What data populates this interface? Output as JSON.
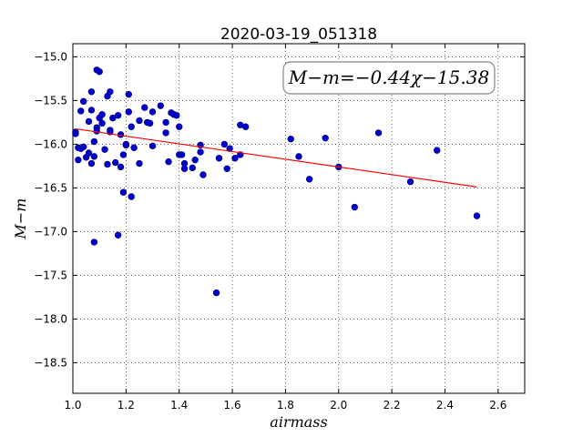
{
  "chart_data": {
    "type": "scatter",
    "title": "2020-03-19_051318",
    "xlabel": "airmass",
    "ylabel": "M−m",
    "xlim": [
      1.0,
      2.7
    ],
    "ylim": [
      -18.85,
      -14.85
    ],
    "y_inverted": true,
    "grid": true,
    "annotation": "M−m=−0.44χ−15.38",
    "x_ticks": [
      "1.0",
      "1.2",
      "1.4",
      "1.6",
      "1.8",
      "2.0",
      "2.2",
      "2.4",
      "2.6"
    ],
    "y_ticks": [
      "−15.0",
      "−15.5",
      "−16.0",
      "−16.5",
      "−17.0",
      "−17.5",
      "−18.0",
      "−18.5"
    ],
    "x_tick_values": [
      1.0,
      1.2,
      1.4,
      1.6,
      1.8,
      2.0,
      2.2,
      2.4,
      2.6
    ],
    "y_tick_values": [
      -15.0,
      -15.5,
      -16.0,
      -16.5,
      -17.0,
      -17.5,
      -18.0,
      -18.5
    ],
    "point_color": "#0000cc",
    "fit_color": "#ff0000",
    "fit": {
      "slope": -0.44,
      "intercept": -15.38,
      "x_range": [
        1.01,
        2.52
      ]
    },
    "points": [
      [
        1.01,
        -15.86
      ],
      [
        1.01,
        -15.88
      ],
      [
        1.02,
        -16.04
      ],
      [
        1.02,
        -16.18
      ],
      [
        1.03,
        -16.05
      ],
      [
        1.03,
        -15.62
      ],
      [
        1.04,
        -15.51
      ],
      [
        1.04,
        -16.03
      ],
      [
        1.05,
        -16.15
      ],
      [
        1.06,
        -16.1
      ],
      [
        1.06,
        -15.74
      ],
      [
        1.07,
        -15.4
      ],
      [
        1.07,
        -15.61
      ],
      [
        1.07,
        -16.22
      ],
      [
        1.08,
        -16.14
      ],
      [
        1.08,
        -15.97
      ],
      [
        1.08,
        -17.12
      ],
      [
        1.09,
        -15.15
      ],
      [
        1.09,
        -15.81
      ],
      [
        1.09,
        -15.85
      ],
      [
        1.1,
        -15.17
      ],
      [
        1.1,
        -15.7
      ],
      [
        1.11,
        -15.66
      ],
      [
        1.11,
        -15.76
      ],
      [
        1.12,
        -16.06
      ],
      [
        1.13,
        -16.23
      ],
      [
        1.13,
        -15.45
      ],
      [
        1.14,
        -15.84
      ],
      [
        1.14,
        -15.86
      ],
      [
        1.14,
        -15.4
      ],
      [
        1.15,
        -15.7
      ],
      [
        1.16,
        -16.21
      ],
      [
        1.17,
        -15.67
      ],
      [
        1.17,
        -17.04
      ],
      [
        1.18,
        -15.89
      ],
      [
        1.18,
        -16.26
      ],
      [
        1.19,
        -16.55
      ],
      [
        1.19,
        -16.12
      ],
      [
        1.2,
        -16.0
      ],
      [
        1.2,
        -16.01
      ],
      [
        1.21,
        -15.43
      ],
      [
        1.21,
        -15.63
      ],
      [
        1.22,
        -15.8
      ],
      [
        1.22,
        -16.6
      ],
      [
        1.23,
        -16.04
      ],
      [
        1.25,
        -15.73
      ],
      [
        1.25,
        -16.22
      ],
      [
        1.27,
        -15.58
      ],
      [
        1.28,
        -15.75
      ],
      [
        1.29,
        -15.76
      ],
      [
        1.3,
        -15.63
      ],
      [
        1.3,
        -16.02
      ],
      [
        1.33,
        -15.56
      ],
      [
        1.35,
        -15.75
      ],
      [
        1.35,
        -15.87
      ],
      [
        1.36,
        -16.2
      ],
      [
        1.37,
        -15.64
      ],
      [
        1.38,
        -15.66
      ],
      [
        1.39,
        -15.67
      ],
      [
        1.4,
        -16.12
      ],
      [
        1.4,
        -15.8
      ],
      [
        1.41,
        -16.12
      ],
      [
        1.42,
        -16.28
      ],
      [
        1.42,
        -16.22
      ],
      [
        1.45,
        -16.27
      ],
      [
        1.46,
        -16.18
      ],
      [
        1.48,
        -16.09
      ],
      [
        1.48,
        -16.01
      ],
      [
        1.49,
        -16.35
      ],
      [
        1.54,
        -17.7
      ],
      [
        1.55,
        -16.16
      ],
      [
        1.57,
        -16.0
      ],
      [
        1.58,
        -16.28
      ],
      [
        1.59,
        -16.05
      ],
      [
        1.61,
        -16.16
      ],
      [
        1.63,
        -15.78
      ],
      [
        1.63,
        -16.12
      ],
      [
        1.65,
        -15.8
      ],
      [
        1.82,
        -15.94
      ],
      [
        1.85,
        -16.14
      ],
      [
        1.89,
        -16.4
      ],
      [
        1.95,
        -15.93
      ],
      [
        2.0,
        -16.26
      ],
      [
        2.06,
        -16.72
      ],
      [
        2.15,
        -15.87
      ],
      [
        2.27,
        -16.43
      ],
      [
        2.37,
        -16.07
      ],
      [
        2.52,
        -16.82
      ]
    ]
  }
}
